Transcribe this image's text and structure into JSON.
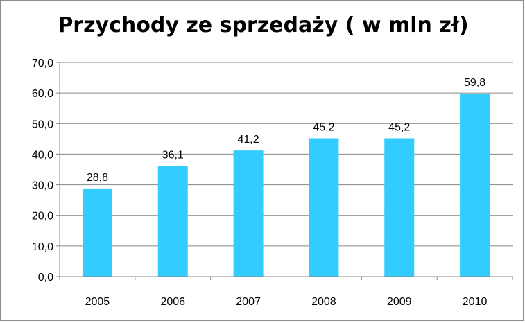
{
  "chart_data": {
    "type": "bar",
    "title": "Przychody ze sprzedaży ( w mln zł)",
    "xlabel": "",
    "ylabel": "",
    "categories": [
      "2005",
      "2006",
      "2007",
      "2008",
      "2009",
      "2010"
    ],
    "values": [
      28.8,
      36.1,
      41.2,
      45.2,
      45.2,
      59.8
    ],
    "data_labels": [
      "28,8",
      "36,1",
      "41,2",
      "45,2",
      "45,2",
      "59,8"
    ],
    "ylim": [
      0,
      70
    ],
    "yticks": [
      0,
      10,
      20,
      30,
      40,
      50,
      60,
      70
    ],
    "ytick_labels": [
      "0,0",
      "10,0",
      "20,0",
      "30,0",
      "40,0",
      "50,0",
      "60,0",
      "70,0"
    ],
    "grid": true,
    "legend": "none",
    "colors": {
      "bar": "#33CCFF",
      "grid": "#868686",
      "axis": "#868686"
    }
  }
}
